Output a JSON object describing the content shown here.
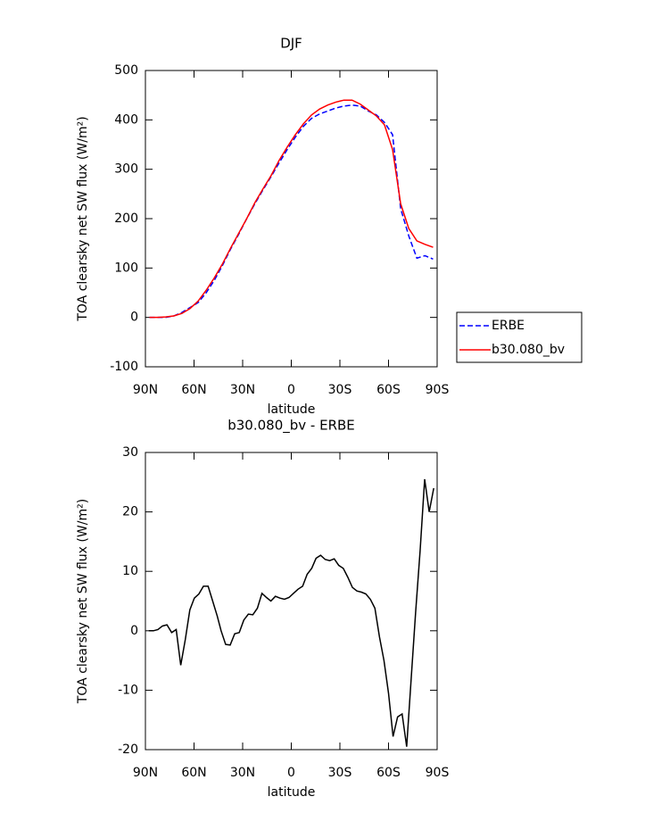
{
  "chart_data": [
    {
      "type": "line",
      "title": "DJF",
      "xlabel": "latitude",
      "ylabel": "TOA clearsky net SW flux (W/m²)",
      "x": [
        87.5,
        82.5,
        77.5,
        72.5,
        67.5,
        62.5,
        57.5,
        52.5,
        47.5,
        42.5,
        37.5,
        32.5,
        27.5,
        22.5,
        17.5,
        12.5,
        7.5,
        2.5,
        -2.5,
        -7.5,
        -12.5,
        -17.5,
        -22.5,
        -27.5,
        -32.5,
        -37.5,
        -42.5,
        -47.5,
        -52.5,
        -57.5,
        -62.5,
        -67.5,
        -72.5,
        -77.5,
        -82.5,
        -87.5
      ],
      "series": [
        {
          "name": "ERBE",
          "color": "#0000ff",
          "style": "dashed",
          "values": [
            0,
            0,
            0,
            3,
            10,
            20,
            30,
            50,
            75,
            105,
            138,
            168,
            200,
            230,
            258,
            285,
            313,
            340,
            365,
            387,
            403,
            412,
            418,
            424,
            428,
            430,
            428,
            418,
            410,
            395,
            370,
            220,
            165,
            120,
            125,
            118
          ]
        },
        {
          "name": "b30.080_bv",
          "color": "#ff0000",
          "style": "solid",
          "values": [
            0,
            0,
            1,
            3,
            8,
            18,
            33,
            55,
            80,
            108,
            140,
            170,
            200,
            232,
            260,
            287,
            318,
            345,
            370,
            392,
            410,
            422,
            430,
            436,
            440,
            440,
            432,
            420,
            408,
            390,
            340,
            230,
            180,
            155,
            148,
            142
          ]
        }
      ],
      "xlim": [
        90,
        -90
      ],
      "xticks": [
        {
          "value": 90,
          "label": "90N"
        },
        {
          "value": 60,
          "label": "60N"
        },
        {
          "value": 30,
          "label": "30N"
        },
        0,
        {
          "value": -30,
          "label": "30S"
        },
        {
          "value": -60,
          "label": "60S"
        },
        {
          "value": -90,
          "label": "90S"
        }
      ],
      "ylim": [
        -100,
        500
      ],
      "yticks": [
        -100,
        0,
        100,
        200,
        300,
        400,
        500
      ],
      "legend": "right"
    },
    {
      "type": "line",
      "title": "b30.080_bv - ERBE",
      "xlabel": "latitude",
      "ylabel": "TOA clearsky net SW flux (W/m²)",
      "x": [
        87.9,
        85.1,
        82.3,
        79.5,
        76.7,
        73.8,
        71.0,
        68.2,
        65.4,
        62.6,
        59.8,
        57.0,
        54.2,
        51.3,
        48.5,
        45.7,
        43.3,
        40.5,
        37.7,
        34.9,
        32.1,
        29.3,
        26.5,
        23.7,
        20.9,
        18.1,
        15.3,
        12.6,
        9.8,
        7.0,
        4.2,
        1.4,
        -1.4,
        -4.2,
        -7.0,
        -9.8,
        -12.6,
        -15.3,
        -18.1,
        -20.9,
        -23.7,
        -26.5,
        -29.3,
        -32.1,
        -34.9,
        -37.7,
        -40.5,
        -43.3,
        -46.0,
        -48.8,
        -51.6,
        -54.4,
        -57.2,
        -60.0,
        -62.8,
        -65.6,
        -68.4,
        -71.2,
        -74.0,
        -76.7,
        -79.5,
        -82.3,
        -85.1,
        -87.9
      ],
      "values": [
        0,
        0,
        0.2,
        0.8,
        1,
        -0.3,
        0.2,
        -5.8,
        -1.5,
        3.5,
        5.5,
        6.2,
        7.5,
        7.5,
        5,
        2.5,
        0,
        -2.3,
        -2.4,
        -0.5,
        -0.3,
        1.8,
        2.8,
        2.7,
        3.8,
        6.3,
        5.6,
        5,
        5.8,
        5.5,
        5.3,
        5.6,
        6.3,
        7,
        7.5,
        9.5,
        10.5,
        12.2,
        12.7,
        12,
        11.8,
        12.1,
        11,
        10.5,
        9,
        7.3,
        6.7,
        6.5,
        6.2,
        5.3,
        3.8,
        -1,
        -5,
        -10.5,
        -17.8,
        -14.5,
        -14,
        -19.5,
        -8,
        3,
        13.5,
        25.5,
        20,
        24
      ],
      "color": "#000000",
      "xlim": [
        90,
        -90
      ],
      "xticks": [
        {
          "value": 90,
          "label": "90N"
        },
        {
          "value": 60,
          "label": "60N"
        },
        {
          "value": 30,
          "label": "30N"
        },
        0,
        {
          "value": -30,
          "label": "30S"
        },
        {
          "value": -60,
          "label": "60S"
        },
        {
          "value": -90,
          "label": "90S"
        }
      ],
      "ylim": [
        -20,
        30
      ],
      "yticks": [
        -20,
        -10,
        0,
        10,
        20,
        30
      ]
    }
  ]
}
